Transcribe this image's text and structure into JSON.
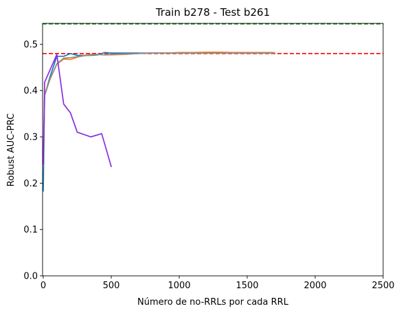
{
  "chart_data": {
    "type": "line",
    "title": "Train b278 - Test b261",
    "xlabel": "Número de no-RRLs por cada RRL",
    "ylabel": "Robust AUC-PRC",
    "xlim": [
      -5,
      2500
    ],
    "ylim": [
      0,
      0.545
    ],
    "xticks": [
      "0",
      "500",
      "1000",
      "1500",
      "2000",
      "2500"
    ],
    "yticks": [
      "0.0",
      "0.1",
      "0.2",
      "0.3",
      "0.4",
      "0.5"
    ],
    "grid": false,
    "series": [
      {
        "color": "#1f77b4",
        "x": [
          0,
          10,
          50,
          100,
          150,
          200,
          250,
          300,
          350,
          400,
          450,
          500,
          600,
          700,
          800,
          900,
          1000,
          1100,
          1200,
          1300,
          1400,
          1500,
          1600,
          1700
        ],
        "y": [
          0.183,
          0.39,
          0.43,
          0.474,
          0.474,
          0.48,
          0.476,
          0.476,
          0.476,
          0.477,
          0.482,
          0.481,
          0.481,
          0.481,
          0.481,
          0.481,
          0.481,
          0.481,
          0.482,
          0.482,
          0.482,
          0.482,
          0.482,
          0.482
        ]
      },
      {
        "color": "#ff7f0e",
        "x": [
          0,
          10,
          50,
          100,
          150,
          200,
          250,
          300,
          350,
          400,
          450,
          500,
          600,
          700,
          800,
          900,
          1000,
          1100,
          1200,
          1300,
          1400,
          1500,
          1600,
          1700
        ],
        "y": [
          0.238,
          0.392,
          0.425,
          0.457,
          0.468,
          0.467,
          0.472,
          0.476,
          0.478,
          0.478,
          0.477,
          0.477,
          0.478,
          0.48,
          0.481,
          0.481,
          0.482,
          0.482,
          0.483,
          0.483,
          0.482,
          0.482,
          0.482,
          0.482
        ]
      },
      {
        "color": "#8c8c8c",
        "x": [
          0,
          10,
          50,
          100,
          150,
          200,
          250,
          300,
          350,
          400,
          450,
          500,
          600,
          700,
          800,
          900,
          1000,
          1100,
          1200,
          1300,
          1400,
          1500,
          1600,
          1700
        ],
        "y": [
          0.24,
          0.389,
          0.425,
          0.458,
          0.47,
          0.471,
          0.473,
          0.475,
          0.477,
          0.478,
          0.477,
          0.478,
          0.479,
          0.48,
          0.481,
          0.481,
          0.481,
          0.481,
          0.481,
          0.481,
          0.481,
          0.481,
          0.481,
          0.481
        ]
      },
      {
        "color": "#8a2be2",
        "x": [
          0,
          10,
          100,
          150,
          200,
          250,
          350,
          430,
          500
        ],
        "y": [
          0.24,
          0.418,
          0.478,
          0.371,
          0.352,
          0.31,
          0.3,
          0.307,
          0.236
        ]
      }
    ],
    "reference_lines": [
      {
        "y": 0.544,
        "color": "#008000",
        "style": "dashed"
      },
      {
        "y": 0.48,
        "color": "#ff0000",
        "style": "dashed"
      }
    ]
  }
}
